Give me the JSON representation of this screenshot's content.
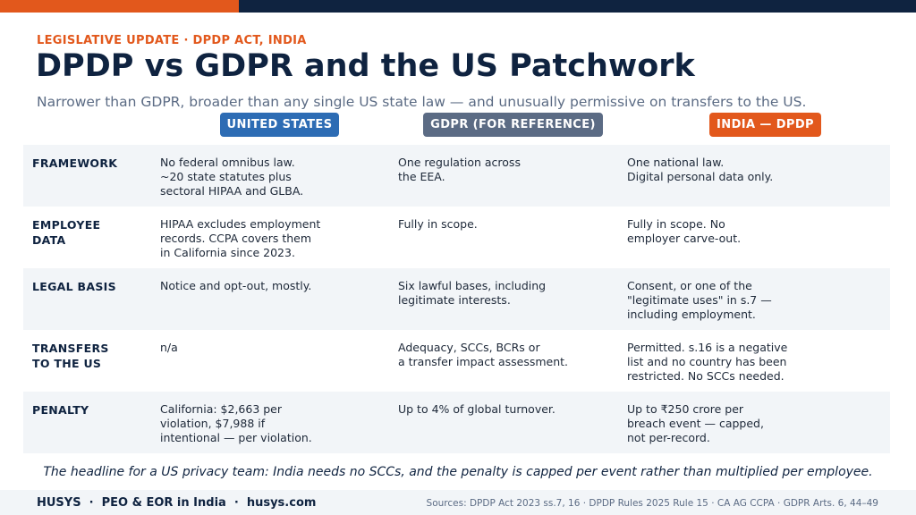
{
  "header": {
    "eyebrow": "LEGISLATIVE UPDATE · DPDP ACT, INDIA",
    "title": "DPDP vs GDPR and the US Patchwork",
    "subtitle": "Narrower than GDPR, broader than any single US state law — and unusually permissive on transfers to the US."
  },
  "columns": {
    "us": "UNITED STATES",
    "gdpr": "GDPR (FOR REFERENCE)",
    "india": "INDIA — DPDP"
  },
  "colors": {
    "navy": "#0f2340",
    "orange": "#e2581c",
    "blue": "#2d6cb4",
    "slate": "#5b6b84",
    "row_shade": "#f2f5f8"
  },
  "rows": [
    {
      "label": "FRAMEWORK",
      "us": "No federal omnibus law.\n~20 state statutes plus\nsectoral HIPAA and GLBA.",
      "gdpr": "One regulation across\nthe EEA.",
      "india": "One national law.\nDigital personal data only."
    },
    {
      "label": "EMPLOYEE\nDATA",
      "us": "HIPAA excludes employment\nrecords. CCPA covers them\nin California since 2023.",
      "gdpr": "Fully in scope.",
      "india": "Fully in scope. No\nemployer carve-out."
    },
    {
      "label": "LEGAL BASIS",
      "us": "Notice and opt-out, mostly.",
      "gdpr": "Six lawful bases, including\nlegitimate interests.",
      "india": "Consent, or one of the\n\"legitimate uses\" in s.7 —\nincluding employment."
    },
    {
      "label": "TRANSFERS\nTO THE US",
      "us": "n/a",
      "gdpr": "Adequacy, SCCs, BCRs or\na transfer impact assessment.",
      "india": "Permitted. s.16 is a negative\nlist and no country has been\nrestricted. No SCCs needed."
    },
    {
      "label": "PENALTY",
      "us": "California: $2,663 per\nviolation, $7,988 if\nintentional — per violation.",
      "gdpr": "Up to 4% of global turnover.",
      "india": "Up to ₹250 crore per\nbreach event — capped,\nnot per-record."
    }
  ],
  "headline": "The headline for a US privacy team: India needs no SCCs, and the penalty is capped per event rather than multiplied per employee.",
  "footer": {
    "brand": "HUSYS  ·  PEO & EOR in India  ·  husys.com",
    "sources": "Sources: DPDP Act 2023 ss.7, 16 · DPDP Rules 2025 Rule 15 · CA AG CCPA · GDPR Arts. 6, 44–49"
  }
}
